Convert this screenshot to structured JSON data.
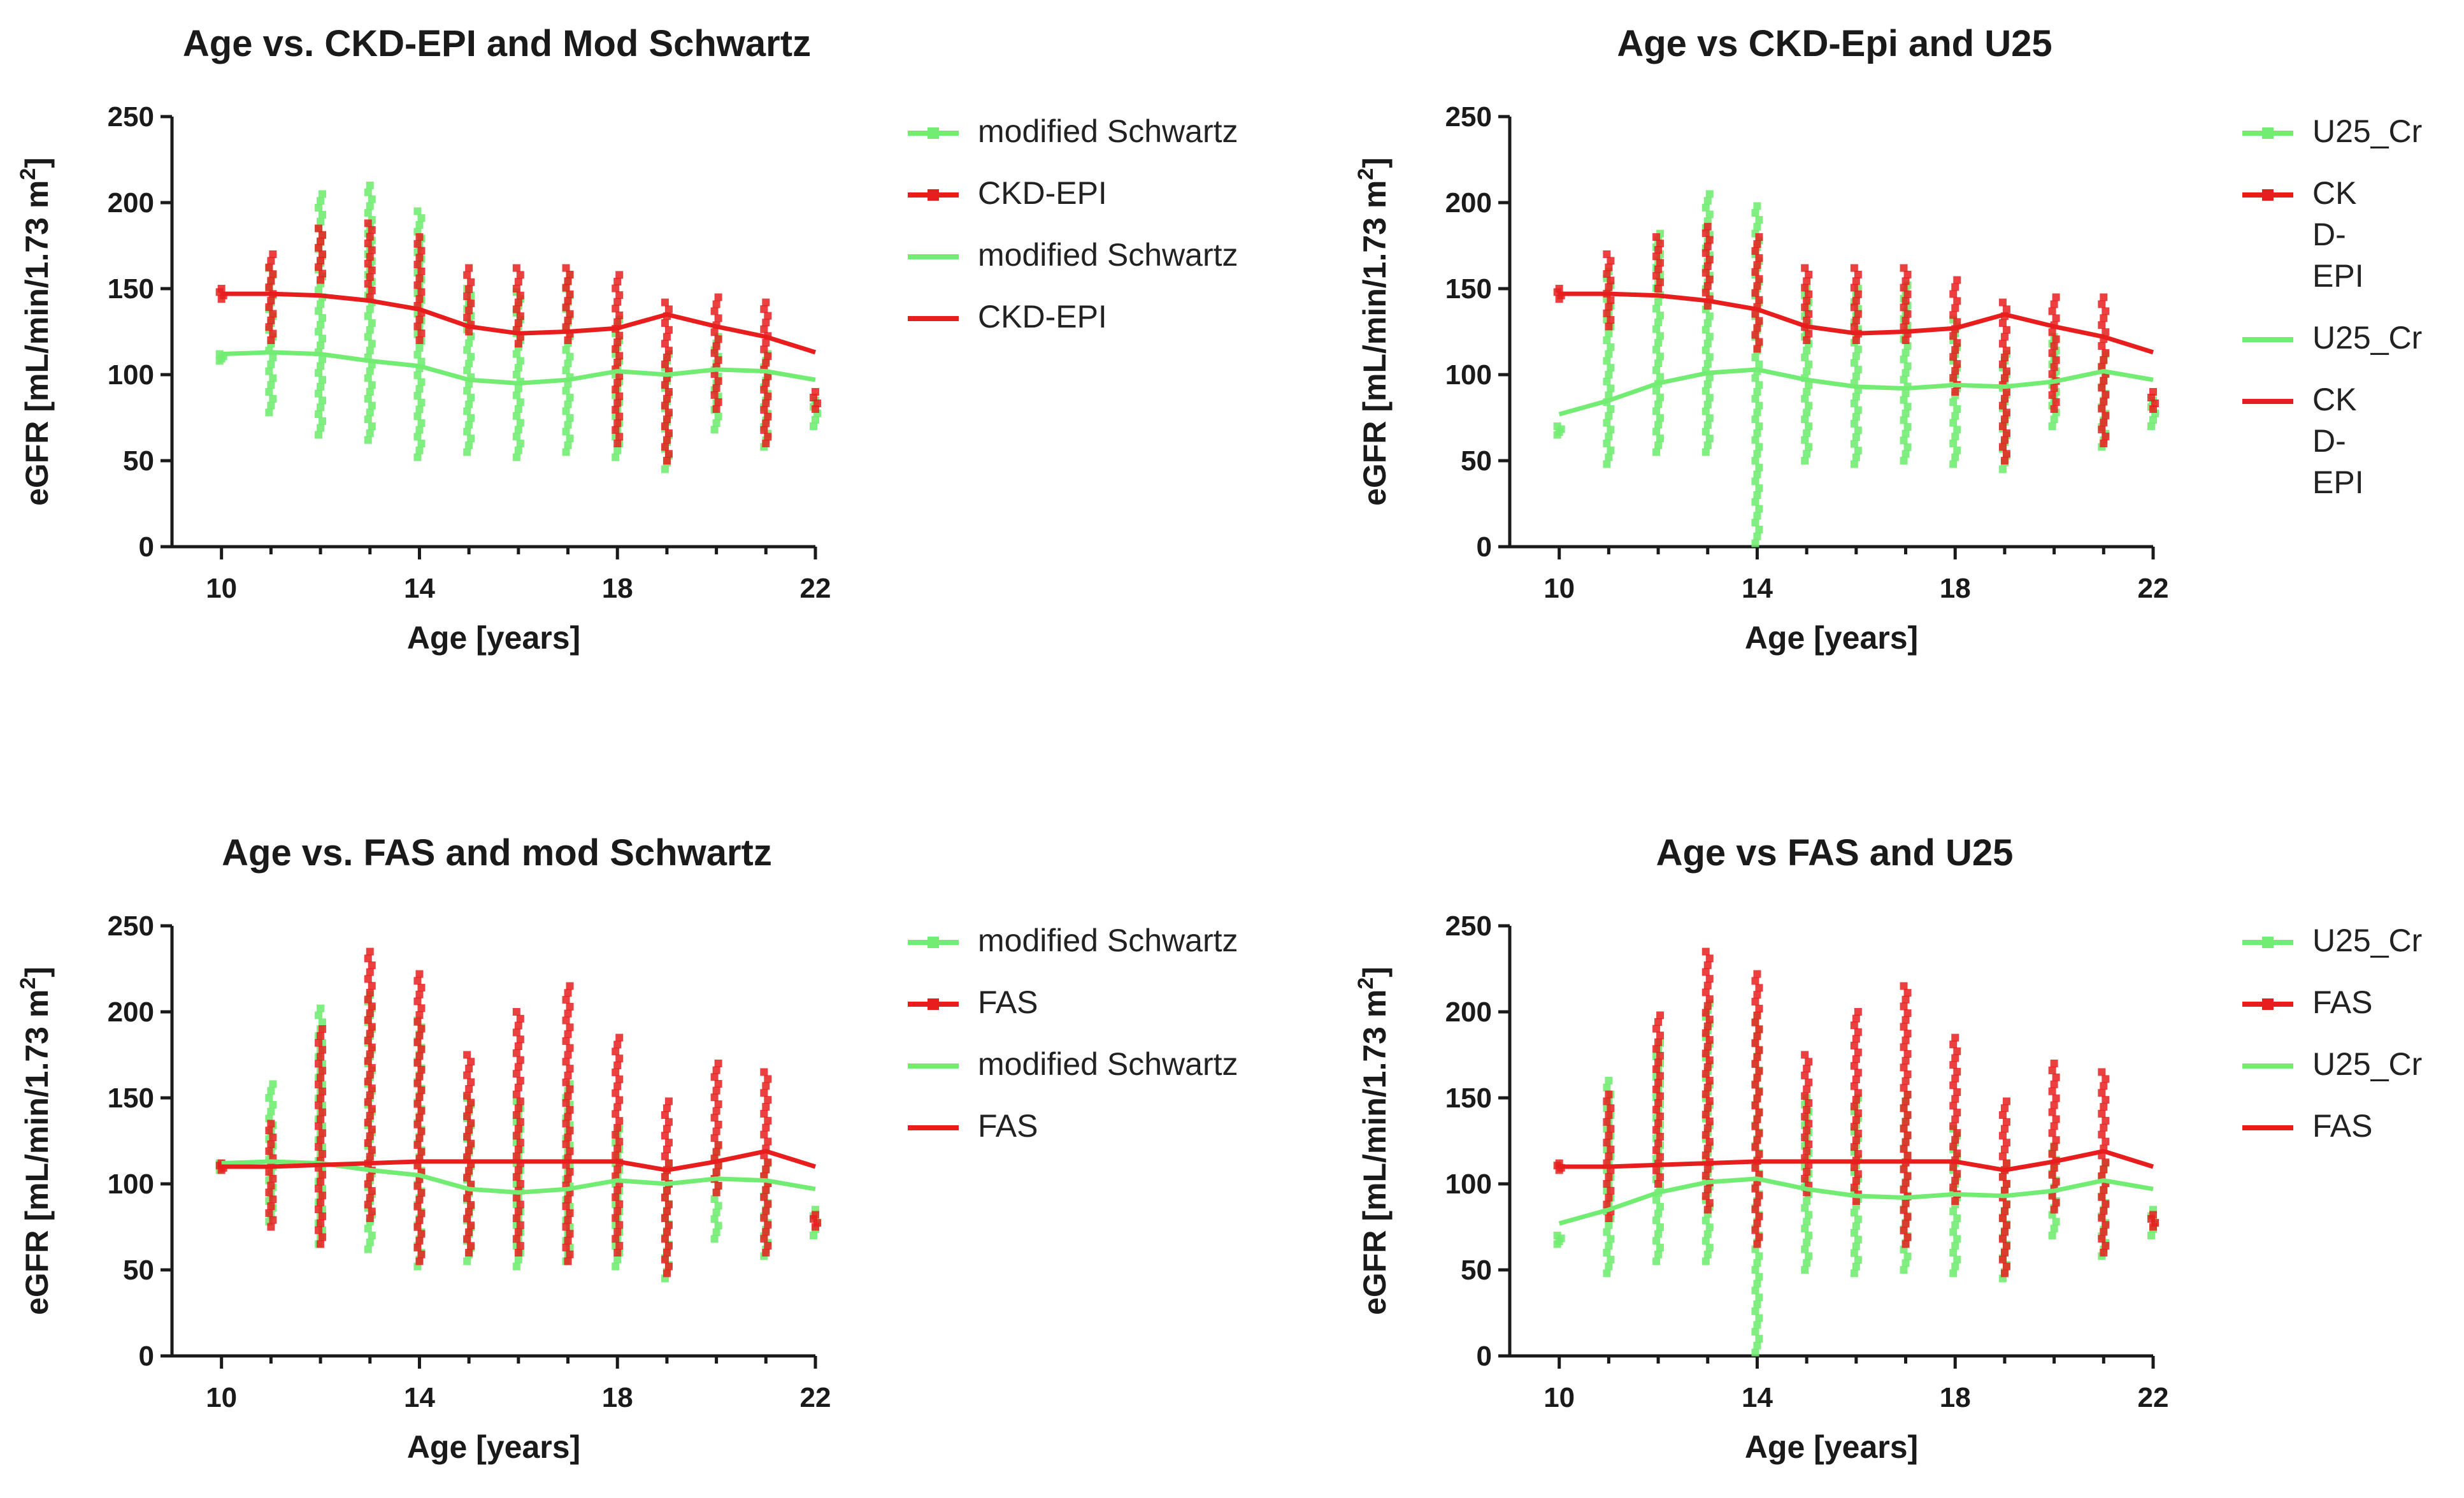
{
  "colors": {
    "green": "#72ec72",
    "red": "#e81e1e",
    "axis": "#1a1a1a",
    "mix": "#c8c83a"
  },
  "chart_data": [
    {
      "type": "scatter",
      "title": "Age vs. CKD-EPI and Mod Schwartz",
      "xlabel": "Age [years]",
      "ylabel": "eGFR [mL/min/1.73 m",
      "ylabel_sup": "2",
      "ylabel_end": "]",
      "xlim": [
        9,
        22
      ],
      "ylim": [
        0,
        250
      ],
      "xticks": [
        {
          "v": 10,
          "label": "10"
        },
        {
          "v": 14,
          "label": "14"
        },
        {
          "v": 18,
          "label": "18"
        },
        {
          "v": 22,
          "label": "22"
        }
      ],
      "yticks": [
        {
          "v": 0,
          "label": "0"
        },
        {
          "v": 50,
          "label": "50"
        },
        {
          "v": 100,
          "label": "100"
        },
        {
          "v": 150,
          "label": "150"
        },
        {
          "v": 200,
          "label": "200"
        },
        {
          "v": 250,
          "label": "250"
        }
      ],
      "legend": [
        {
          "label": "modified Schwartz",
          "kind": "point",
          "color": "green"
        },
        {
          "label": "CKD-EPI",
          "kind": "point",
          "color": "red"
        },
        {
          "label": "modified Schwartz",
          "kind": "line",
          "color": "green"
        },
        {
          "label": "CKD-EPI",
          "kind": "line",
          "color": "red"
        }
      ],
      "x": [
        10,
        11,
        12,
        13,
        14,
        15,
        16,
        17,
        18,
        19,
        20,
        21,
        22
      ],
      "series": [
        {
          "name": "modified Schwartz",
          "kind": "points",
          "color": "green",
          "ranges": [
            [
              108,
              112
            ],
            [
              78,
              162
            ],
            [
              65,
              205
            ],
            [
              62,
              210
            ],
            [
              52,
              195
            ],
            [
              55,
              150
            ],
            [
              52,
              148
            ],
            [
              55,
              158
            ],
            [
              52,
              132
            ],
            [
              45,
              112
            ],
            [
              68,
              122
            ],
            [
              58,
              112
            ],
            [
              70,
              85
            ]
          ]
        },
        {
          "name": "CKD-EPI",
          "kind": "points",
          "color": "red",
          "ranges": [
            [
              144,
              150
            ],
            [
              120,
              170
            ],
            [
              155,
              185
            ],
            [
              145,
              188
            ],
            [
              120,
              180
            ],
            [
              125,
              162
            ],
            [
              118,
              162
            ],
            [
              120,
              162
            ],
            [
              60,
              158
            ],
            [
              50,
              142
            ],
            [
              80,
              145
            ],
            [
              60,
              142
            ],
            [
              80,
              90
            ]
          ]
        },
        {
          "name": "modified Schwartz",
          "kind": "line",
          "color": "green",
          "values": [
            112,
            113,
            112,
            108,
            105,
            97,
            95,
            97,
            102,
            100,
            103,
            102,
            97
          ]
        },
        {
          "name": "CKD-EPI",
          "kind": "line",
          "color": "red",
          "values": [
            147,
            147,
            146,
            143,
            138,
            128,
            124,
            125,
            127,
            135,
            128,
            122,
            113
          ]
        }
      ]
    },
    {
      "type": "scatter",
      "title": "Age vs CKD-Epi and U25",
      "xlabel": "Age [years]",
      "ylabel": "eGFR [mL/min/1.73 m",
      "ylabel_sup": "2",
      "ylabel_end": "]",
      "xlim": [
        9,
        22
      ],
      "ylim": [
        0,
        250
      ],
      "xticks": [
        {
          "v": 10,
          "label": "10"
        },
        {
          "v": 14,
          "label": "14"
        },
        {
          "v": 18,
          "label": "18"
        },
        {
          "v": 22,
          "label": "22"
        }
      ],
      "yticks": [
        {
          "v": 0,
          "label": "0"
        },
        {
          "v": 50,
          "label": "50"
        },
        {
          "v": 100,
          "label": "100"
        },
        {
          "v": 150,
          "label": "150"
        },
        {
          "v": 200,
          "label": "200"
        },
        {
          "v": 250,
          "label": "250"
        }
      ],
      "legend": [
        {
          "label": "U25_Cr",
          "kind": "point",
          "color": "green"
        },
        {
          "label": "CK\nD-\nEPI",
          "kind": "point",
          "color": "red"
        },
        {
          "label": "U25_Cr",
          "kind": "line",
          "color": "green"
        },
        {
          "label": "CK\nD-\nEPI",
          "kind": "line",
          "color": "red"
        }
      ],
      "x": [
        10,
        11,
        12,
        13,
        14,
        15,
        16,
        17,
        18,
        19,
        20,
        21,
        22
      ],
      "series": [
        {
          "name": "U25_Cr",
          "kind": "points",
          "color": "green",
          "ranges": [
            [
              65,
              70
            ],
            [
              48,
              160
            ],
            [
              55,
              182
            ],
            [
              55,
              205
            ],
            [
              2,
              198
            ],
            [
              50,
              150
            ],
            [
              48,
              150
            ],
            [
              50,
              152
            ],
            [
              48,
              132
            ],
            [
              45,
              112
            ],
            [
              70,
              122
            ],
            [
              58,
              112
            ],
            [
              70,
              85
            ]
          ]
        },
        {
          "name": "CKD-EPI",
          "kind": "points",
          "color": "red",
          "ranges": [
            [
              144,
              150
            ],
            [
              128,
              170
            ],
            [
              150,
              180
            ],
            [
              140,
              186
            ],
            [
              115,
              180
            ],
            [
              120,
              162
            ],
            [
              120,
              162
            ],
            [
              120,
              162
            ],
            [
              90,
              155
            ],
            [
              50,
              142
            ],
            [
              80,
              145
            ],
            [
              60,
              145
            ],
            [
              80,
              90
            ]
          ]
        },
        {
          "name": "U25_Cr",
          "kind": "line",
          "color": "green",
          "values": [
            77,
            85,
            95,
            101,
            103,
            97,
            93,
            92,
            94,
            93,
            96,
            102,
            97
          ]
        },
        {
          "name": "CKD-EPI",
          "kind": "line",
          "color": "red",
          "values": [
            147,
            147,
            146,
            143,
            138,
            128,
            124,
            125,
            127,
            135,
            128,
            122,
            113
          ]
        }
      ]
    },
    {
      "type": "scatter",
      "title": "Age vs. FAS and mod Schwartz",
      "xlabel": "Age [years]",
      "ylabel": "eGFR [mL/min/1.73 m",
      "ylabel_sup": "2",
      "ylabel_end": "]",
      "xlim": [
        9,
        22
      ],
      "ylim": [
        0,
        250
      ],
      "xticks": [
        {
          "v": 10,
          "label": "10"
        },
        {
          "v": 14,
          "label": "14"
        },
        {
          "v": 18,
          "label": "18"
        },
        {
          "v": 22,
          "label": "22"
        }
      ],
      "yticks": [
        {
          "v": 0,
          "label": "0"
        },
        {
          "v": 50,
          "label": "50"
        },
        {
          "v": 100,
          "label": "100"
        },
        {
          "v": 150,
          "label": "150"
        },
        {
          "v": 200,
          "label": "200"
        },
        {
          "v": 250,
          "label": "250"
        }
      ],
      "legend": [
        {
          "label": "modified Schwartz",
          "kind": "point",
          "color": "green"
        },
        {
          "label": "FAS",
          "kind": "point",
          "color": "red"
        },
        {
          "label": "modified Schwartz",
          "kind": "line",
          "color": "green"
        },
        {
          "label": "FAS",
          "kind": "line",
          "color": "red"
        }
      ],
      "x": [
        10,
        11,
        12,
        13,
        14,
        15,
        16,
        17,
        18,
        19,
        20,
        21,
        22
      ],
      "series": [
        {
          "name": "modified Schwartz",
          "kind": "points",
          "color": "green",
          "ranges": [
            [
              108,
              112
            ],
            [
              78,
              158
            ],
            [
              65,
              202
            ],
            [
              62,
              210
            ],
            [
              52,
              195
            ],
            [
              55,
              150
            ],
            [
              52,
              148
            ],
            [
              55,
              158
            ],
            [
              52,
              132
            ],
            [
              45,
              112
            ],
            [
              68,
              122
            ],
            [
              58,
              112
            ],
            [
              70,
              85
            ]
          ]
        },
        {
          "name": "FAS",
          "kind": "points",
          "color": "red",
          "ranges": [
            [
              108,
              112
            ],
            [
              75,
              135
            ],
            [
              65,
              190
            ],
            [
              80,
              235
            ],
            [
              55,
              222
            ],
            [
              60,
              175
            ],
            [
              60,
              200
            ],
            [
              55,
              215
            ],
            [
              60,
              185
            ],
            [
              48,
              148
            ],
            [
              95,
              170
            ],
            [
              60,
              165
            ],
            [
              75,
              82
            ]
          ]
        },
        {
          "name": "modified Schwartz",
          "kind": "line",
          "color": "green",
          "values": [
            112,
            113,
            112,
            108,
            105,
            97,
            95,
            97,
            102,
            100,
            103,
            102,
            97
          ]
        },
        {
          "name": "FAS",
          "kind": "line",
          "color": "red",
          "values": [
            110,
            110,
            111,
            112,
            113,
            113,
            113,
            113,
            113,
            108,
            113,
            119,
            110
          ]
        }
      ]
    },
    {
      "type": "scatter",
      "title": "Age vs FAS and U25",
      "xlabel": "Age [years]",
      "ylabel": "eGFR [mL/min/1.73 m",
      "ylabel_sup": "2",
      "ylabel_end": "]",
      "xlim": [
        9,
        22
      ],
      "ylim": [
        0,
        250
      ],
      "xticks": [
        {
          "v": 10,
          "label": "10"
        },
        {
          "v": 14,
          "label": "14"
        },
        {
          "v": 18,
          "label": "18"
        },
        {
          "v": 22,
          "label": "22"
        }
      ],
      "yticks": [
        {
          "v": 0,
          "label": "0"
        },
        {
          "v": 50,
          "label": "50"
        },
        {
          "v": 100,
          "label": "100"
        },
        {
          "v": 150,
          "label": "150"
        },
        {
          "v": 200,
          "label": "200"
        },
        {
          "v": 250,
          "label": "250"
        }
      ],
      "legend": [
        {
          "label": "U25_Cr",
          "kind": "point",
          "color": "green"
        },
        {
          "label": "FAS",
          "kind": "point",
          "color": "red"
        },
        {
          "label": "U25_Cr",
          "kind": "line",
          "color": "green"
        },
        {
          "label": "FAS",
          "kind": "line",
          "color": "red"
        }
      ],
      "x": [
        10,
        11,
        12,
        13,
        14,
        15,
        16,
        17,
        18,
        19,
        20,
        21,
        22
      ],
      "series": [
        {
          "name": "U25_Cr",
          "kind": "points",
          "color": "green",
          "ranges": [
            [
              65,
              70
            ],
            [
              48,
              160
            ],
            [
              55,
              182
            ],
            [
              55,
              205
            ],
            [
              2,
              198
            ],
            [
              50,
              150
            ],
            [
              48,
              150
            ],
            [
              50,
              152
            ],
            [
              48,
              132
            ],
            [
              45,
              112
            ],
            [
              70,
              122
            ],
            [
              58,
              112
            ],
            [
              70,
              85
            ]
          ]
        },
        {
          "name": "FAS",
          "kind": "points",
          "color": "red",
          "ranges": [
            [
              108,
              112
            ],
            [
              80,
              152
            ],
            [
              100,
              198
            ],
            [
              85,
              235
            ],
            [
              65,
              222
            ],
            [
              95,
              175
            ],
            [
              90,
              200
            ],
            [
              65,
              215
            ],
            [
              90,
              185
            ],
            [
              48,
              148
            ],
            [
              85,
              170
            ],
            [
              60,
              165
            ],
            [
              75,
              82
            ]
          ]
        },
        {
          "name": "U25_Cr",
          "kind": "line",
          "color": "green",
          "values": [
            77,
            85,
            95,
            101,
            103,
            97,
            93,
            92,
            94,
            93,
            96,
            102,
            97
          ]
        },
        {
          "name": "FAS",
          "kind": "line",
          "color": "red",
          "values": [
            110,
            110,
            111,
            112,
            113,
            113,
            113,
            113,
            113,
            108,
            113,
            119,
            110
          ]
        }
      ]
    }
  ]
}
